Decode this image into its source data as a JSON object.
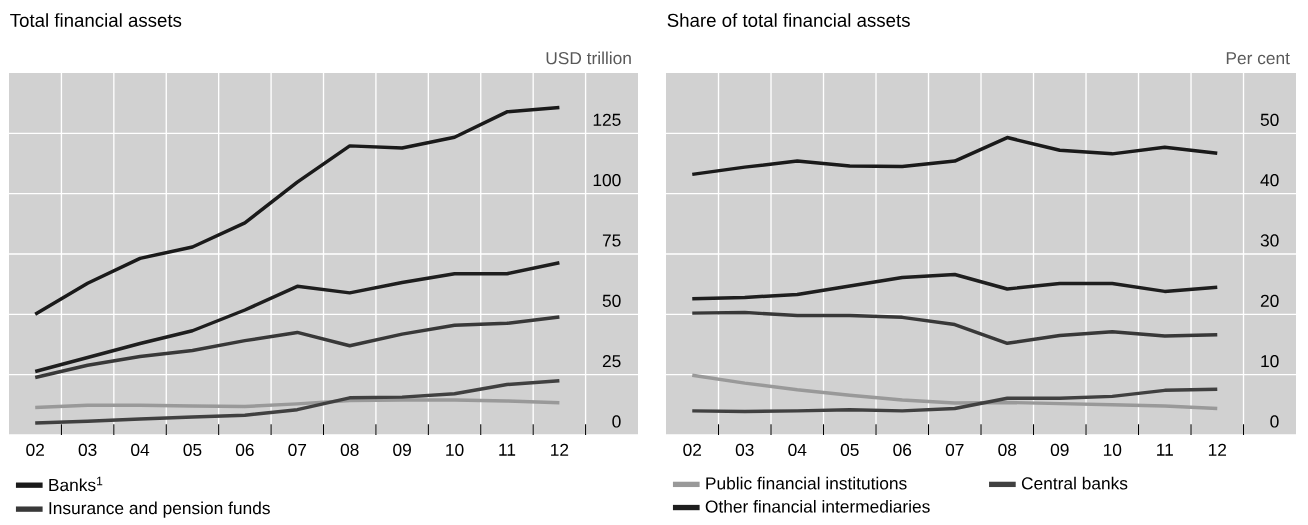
{
  "chart_data": [
    {
      "type": "line",
      "title": "Total financial assets",
      "ylabel": "USD trillion",
      "categories": [
        "02",
        "03",
        "04",
        "05",
        "06",
        "07",
        "08",
        "09",
        "10",
        "11",
        "12"
      ],
      "ylim": [
        0,
        150
      ],
      "yticks": [
        0,
        25,
        50,
        75,
        100,
        125
      ],
      "grid": true,
      "legend": "bottom",
      "series": [
        {
          "color": "#999999",
          "values": [
            11.4,
            12.3,
            12.3,
            12.0,
            11.8,
            12.9,
            14.3,
            14.5,
            14.5,
            14.1,
            13.4
          ]
        },
        {
          "color": "#404040",
          "values": [
            5.0,
            5.7,
            6.6,
            7.5,
            8.2,
            10.5,
            15.4,
            15.7,
            17.1,
            20.9,
            22.5
          ]
        },
        {
          "color": "#1e1e1e",
          "values": [
            26.3,
            32.1,
            37.9,
            43.2,
            51.8,
            61.6,
            58.9,
            63.2,
            66.8,
            66.8,
            71.4
          ]
        },
        {
          "name": "Banks$^{1}$",
          "color": "#1a1a1a",
          "values": [
            50.0,
            62.9,
            73.2,
            77.9,
            87.9,
            104.8,
            119.8,
            118.9,
            123.4,
            133.9,
            135.7
          ]
        },
        {
          "name": "Insurance and pension funds",
          "color": "#383838",
          "values": [
            23.8,
            28.9,
            32.5,
            35.0,
            39.1,
            42.5,
            37.0,
            41.8,
            45.5,
            46.3,
            48.9
          ]
        }
      ]
    },
    {
      "type": "line",
      "title": "Share of total financial assets",
      "ylabel": "Per cent",
      "categories": [
        "02",
        "03",
        "04",
        "05",
        "06",
        "07",
        "08",
        "09",
        "10",
        "11",
        "12"
      ],
      "ylim": [
        0,
        60
      ],
      "yticks": [
        0,
        10,
        20,
        30,
        40,
        50
      ],
      "grid": true,
      "legend": "bottom",
      "series": [
        {
          "color": "#1a1a1a",
          "values": [
            43.2,
            44.4,
            45.4,
            44.6,
            44.5,
            45.4,
            49.3,
            47.2,
            46.6,
            47.7,
            46.7
          ]
        },
        {
          "color": "#383838",
          "values": [
            20.2,
            20.3,
            19.8,
            19.8,
            19.5,
            18.3,
            15.2,
            16.5,
            17.1,
            16.4,
            16.6
          ]
        },
        {
          "name": "Public financial institutions",
          "color": "#999999",
          "values": [
            9.9,
            8.6,
            7.5,
            6.6,
            5.8,
            5.3,
            5.4,
            5.2,
            5.0,
            4.8,
            4.4
          ]
        },
        {
          "name": "Central banks",
          "color": "#404040",
          "values": [
            4.0,
            3.9,
            4.0,
            4.2,
            4.0,
            4.4,
            6.1,
            6.1,
            6.4,
            7.4,
            7.6
          ]
        },
        {
          "name": "Other financial intermediaries",
          "color": "#1e1e1e",
          "values": [
            22.6,
            22.8,
            23.3,
            24.7,
            26.1,
            26.6,
            24.2,
            25.1,
            25.1,
            23.8,
            24.5
          ]
        }
      ]
    }
  ]
}
